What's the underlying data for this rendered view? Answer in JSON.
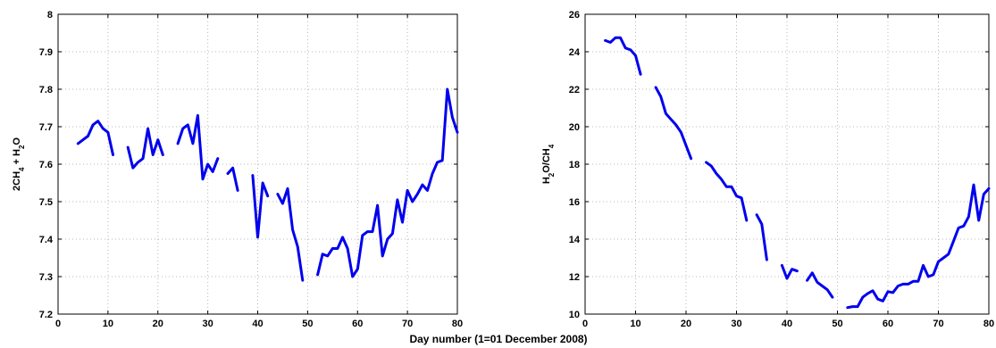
{
  "figure": {
    "shared_xlabel": "Day number (1=01 December 2008)"
  },
  "chart_data": [
    {
      "type": "line",
      "title": "",
      "ylabel_parts": [
        "2CH",
        "4",
        " + H",
        "2",
        "O"
      ],
      "xlim": [
        0,
        80
      ],
      "ylim": [
        7.2,
        8.0
      ],
      "xticks": [
        "0",
        "10",
        "20",
        "30",
        "40",
        "50",
        "60",
        "70",
        "80"
      ],
      "yticks": [
        "7.2",
        "7.3",
        "7.4",
        "7.5",
        "7.6",
        "7.7",
        "7.8",
        "7.9",
        "8"
      ],
      "xtick_values": [
        0,
        10,
        20,
        30,
        40,
        50,
        60,
        70,
        80
      ],
      "ytick_values": [
        7.2,
        7.3,
        7.4,
        7.5,
        7.6,
        7.7,
        7.8,
        7.9,
        8.0
      ],
      "grid": true,
      "color": "#0000ee",
      "series": [
        {
          "segments": [
            [
              [
                4,
                7.655
              ],
              [
                5,
                7.665
              ],
              [
                6,
                7.675
              ],
              [
                7,
                7.705
              ],
              [
                8,
                7.715
              ],
              [
                9,
                7.695
              ],
              [
                10,
                7.685
              ],
              [
                11,
                7.625
              ]
            ],
            [
              [
                14,
                7.645
              ],
              [
                15,
                7.59
              ],
              [
                16,
                7.605
              ],
              [
                17,
                7.615
              ],
              [
                18,
                7.695
              ],
              [
                19,
                7.625
              ],
              [
                20,
                7.665
              ],
              [
                21,
                7.625
              ]
            ],
            [
              [
                24,
                7.655
              ],
              [
                25,
                7.695
              ],
              [
                26,
                7.705
              ],
              [
                27,
                7.655
              ],
              [
                28,
                7.73
              ],
              [
                29,
                7.56
              ],
              [
                30,
                7.6
              ],
              [
                31,
                7.58
              ],
              [
                32,
                7.615
              ]
            ],
            [
              [
                34,
                7.575
              ],
              [
                35,
                7.59
              ],
              [
                36,
                7.53
              ]
            ],
            [
              [
                39,
                7.57
              ],
              [
                40,
                7.405
              ],
              [
                41,
                7.55
              ],
              [
                42,
                7.515
              ]
            ],
            [
              [
                44,
                7.52
              ],
              [
                45,
                7.495
              ],
              [
                46,
                7.535
              ],
              [
                47,
                7.425
              ],
              [
                48,
                7.38
              ],
              [
                49,
                7.29
              ]
            ],
            [
              [
                52,
                7.305
              ],
              [
                53,
                7.36
              ],
              [
                54,
                7.355
              ],
              [
                55,
                7.375
              ],
              [
                56,
                7.375
              ],
              [
                57,
                7.405
              ],
              [
                58,
                7.375
              ],
              [
                59,
                7.3
              ],
              [
                60,
                7.32
              ],
              [
                61,
                7.41
              ],
              [
                62,
                7.42
              ],
              [
                63,
                7.42
              ],
              [
                64,
                7.49
              ],
              [
                65,
                7.355
              ],
              [
                66,
                7.4
              ],
              [
                67,
                7.415
              ],
              [
                68,
                7.505
              ],
              [
                69,
                7.445
              ],
              [
                70,
                7.53
              ],
              [
                71,
                7.5
              ],
              [
                72,
                7.52
              ],
              [
                73,
                7.545
              ],
              [
                74,
                7.53
              ],
              [
                75,
                7.575
              ],
              [
                76,
                7.605
              ],
              [
                77,
                7.61
              ],
              [
                78,
                7.8
              ],
              [
                79,
                7.725
              ],
              [
                80,
                7.685
              ]
            ]
          ]
        }
      ]
    },
    {
      "type": "line",
      "title": "",
      "ylabel_parts": [
        "H",
        "2",
        "O/CH",
        "4",
        ""
      ],
      "xlim": [
        0,
        80
      ],
      "ylim": [
        10,
        26
      ],
      "xticks": [
        "0",
        "10",
        "20",
        "30",
        "40",
        "50",
        "60",
        "70",
        "80"
      ],
      "yticks": [
        "10",
        "12",
        "14",
        "16",
        "18",
        "20",
        "22",
        "24",
        "26"
      ],
      "xtick_values": [
        0,
        10,
        20,
        30,
        40,
        50,
        60,
        70,
        80
      ],
      "ytick_values": [
        10,
        12,
        14,
        16,
        18,
        20,
        22,
        24,
        26
      ],
      "grid": true,
      "color": "#0000ee",
      "series": [
        {
          "segments": [
            [
              [
                4,
                24.6
              ],
              [
                5,
                24.5
              ],
              [
                6,
                24.75
              ],
              [
                7,
                24.75
              ],
              [
                8,
                24.2
              ],
              [
                9,
                24.1
              ],
              [
                10,
                23.8
              ],
              [
                11,
                22.8
              ]
            ],
            [
              [
                14,
                22.1
              ],
              [
                15,
                21.6
              ],
              [
                16,
                20.7
              ],
              [
                17,
                20.4
              ],
              [
                18,
                20.1
              ],
              [
                19,
                19.7
              ],
              [
                20,
                19.0
              ],
              [
                21,
                18.3
              ]
            ],
            [
              [
                24,
                18.1
              ],
              [
                25,
                17.9
              ],
              [
                26,
                17.5
              ],
              [
                27,
                17.2
              ],
              [
                28,
                16.8
              ],
              [
                29,
                16.8
              ],
              [
                30,
                16.3
              ],
              [
                31,
                16.2
              ],
              [
                32,
                15.0
              ]
            ],
            [
              [
                34,
                15.3
              ],
              [
                35,
                14.8
              ],
              [
                36,
                12.9
              ]
            ],
            [
              [
                39,
                12.6
              ],
              [
                40,
                11.9
              ],
              [
                41,
                12.4
              ],
              [
                42,
                12.3
              ]
            ],
            [
              [
                44,
                11.8
              ],
              [
                45,
                12.2
              ],
              [
                46,
                11.7
              ],
              [
                47,
                11.5
              ],
              [
                48,
                11.3
              ],
              [
                49,
                10.9
              ]
            ],
            [
              [
                52,
                10.35
              ],
              [
                53,
                10.4
              ],
              [
                54,
                10.4
              ],
              [
                55,
                10.9
              ],
              [
                56,
                11.1
              ],
              [
                57,
                11.25
              ],
              [
                58,
                10.8
              ],
              [
                59,
                10.7
              ],
              [
                60,
                11.2
              ],
              [
                61,
                11.15
              ],
              [
                62,
                11.5
              ],
              [
                63,
                11.6
              ],
              [
                64,
                11.6
              ],
              [
                65,
                11.75
              ],
              [
                66,
                11.75
              ],
              [
                67,
                12.6
              ],
              [
                68,
                12.0
              ],
              [
                69,
                12.1
              ],
              [
                70,
                12.8
              ],
              [
                71,
                13.0
              ],
              [
                72,
                13.2
              ],
              [
                73,
                13.9
              ],
              [
                74,
                14.6
              ],
              [
                75,
                14.7
              ],
              [
                76,
                15.2
              ],
              [
                77,
                16.9
              ],
              [
                78,
                15.0
              ],
              [
                79,
                16.4
              ],
              [
                80,
                16.7
              ]
            ]
          ]
        }
      ]
    }
  ]
}
